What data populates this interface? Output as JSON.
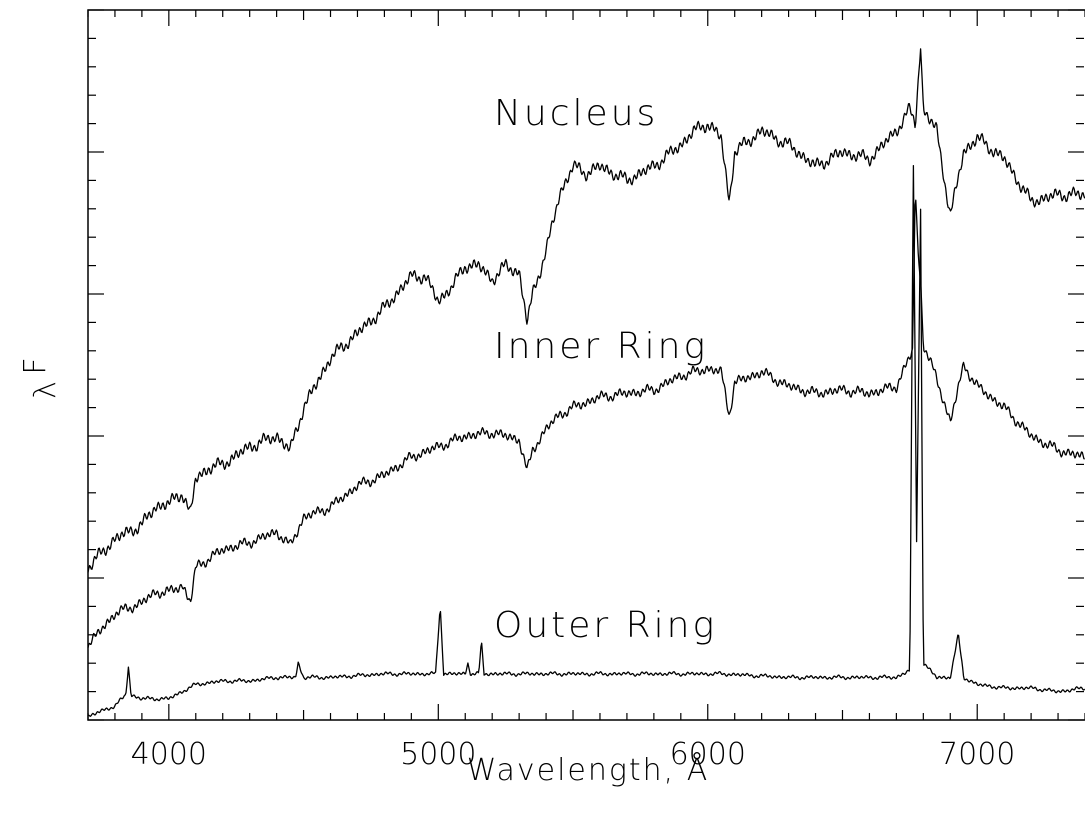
{
  "chart_data": {
    "type": "line",
    "title": "",
    "xlabel": "Wavelength, Å",
    "ylabel": "F",
    "ylabel_subscript": "λ",
    "xlim": [
      3700,
      7400
    ],
    "ylim": [
      0,
      1
    ],
    "xticks": [
      4000,
      5000,
      6000,
      7000
    ],
    "xtick_labels": [
      "4000",
      "5000",
      "6000",
      "7000"
    ],
    "grid": false,
    "legend": "none",
    "series": [
      {
        "name": "Nucleus",
        "points": [
          [
            3700,
            0.215
          ],
          [
            3800,
            0.255
          ],
          [
            3900,
            0.275
          ],
          [
            3950,
            0.3
          ],
          [
            4000,
            0.305
          ],
          [
            4050,
            0.32
          ],
          [
            4080,
            0.29
          ],
          [
            4100,
            0.34
          ],
          [
            4150,
            0.355
          ],
          [
            4200,
            0.36
          ],
          [
            4300,
            0.385
          ],
          [
            4400,
            0.4
          ],
          [
            4450,
            0.38
          ],
          [
            4500,
            0.44
          ],
          [
            4600,
            0.51
          ],
          [
            4700,
            0.545
          ],
          [
            4800,
            0.58
          ],
          [
            4900,
            0.625
          ],
          [
            4950,
            0.625
          ],
          [
            5000,
            0.59
          ],
          [
            5050,
            0.61
          ],
          [
            5100,
            0.64
          ],
          [
            5150,
            0.64
          ],
          [
            5200,
            0.62
          ],
          [
            5250,
            0.64
          ],
          [
            5300,
            0.63
          ],
          [
            5330,
            0.56
          ],
          [
            5350,
            0.6
          ],
          [
            5400,
            0.66
          ],
          [
            5450,
            0.74
          ],
          [
            5500,
            0.78
          ],
          [
            5550,
            0.77
          ],
          [
            5600,
            0.78
          ],
          [
            5700,
            0.76
          ],
          [
            5800,
            0.78
          ],
          [
            5900,
            0.81
          ],
          [
            5950,
            0.83
          ],
          [
            6000,
            0.84
          ],
          [
            6050,
            0.82
          ],
          [
            6080,
            0.73
          ],
          [
            6100,
            0.8
          ],
          [
            6200,
            0.83
          ],
          [
            6300,
            0.81
          ],
          [
            6400,
            0.78
          ],
          [
            6500,
            0.8
          ],
          [
            6600,
            0.79
          ],
          [
            6700,
            0.83
          ],
          [
            6750,
            0.86
          ],
          [
            6770,
            0.84
          ],
          [
            6790,
            0.95
          ],
          [
            6800,
            0.86
          ],
          [
            6850,
            0.83
          ],
          [
            6900,
            0.71
          ],
          [
            6950,
            0.8
          ],
          [
            7000,
            0.82
          ],
          [
            7100,
            0.79
          ],
          [
            7200,
            0.73
          ],
          [
            7300,
            0.74
          ],
          [
            7400,
            0.74
          ]
        ]
      },
      {
        "name": "Inner Ring",
        "points": [
          [
            3700,
            0.105
          ],
          [
            3800,
            0.15
          ],
          [
            3900,
            0.165
          ],
          [
            3950,
            0.18
          ],
          [
            4000,
            0.18
          ],
          [
            4050,
            0.19
          ],
          [
            4080,
            0.165
          ],
          [
            4100,
            0.215
          ],
          [
            4200,
            0.24
          ],
          [
            4300,
            0.25
          ],
          [
            4400,
            0.265
          ],
          [
            4450,
            0.245
          ],
          [
            4500,
            0.285
          ],
          [
            4600,
            0.3
          ],
          [
            4700,
            0.33
          ],
          [
            4800,
            0.345
          ],
          [
            4900,
            0.37
          ],
          [
            5000,
            0.385
          ],
          [
            5100,
            0.4
          ],
          [
            5200,
            0.405
          ],
          [
            5300,
            0.395
          ],
          [
            5330,
            0.35
          ],
          [
            5350,
            0.38
          ],
          [
            5400,
            0.41
          ],
          [
            5450,
            0.43
          ],
          [
            5500,
            0.44
          ],
          [
            5600,
            0.455
          ],
          [
            5700,
            0.46
          ],
          [
            5800,
            0.465
          ],
          [
            5900,
            0.485
          ],
          [
            6000,
            0.495
          ],
          [
            6050,
            0.49
          ],
          [
            6080,
            0.43
          ],
          [
            6100,
            0.475
          ],
          [
            6200,
            0.49
          ],
          [
            6300,
            0.47
          ],
          [
            6400,
            0.46
          ],
          [
            6500,
            0.465
          ],
          [
            6600,
            0.46
          ],
          [
            6700,
            0.47
          ],
          [
            6760,
            0.52
          ],
          [
            6770,
            0.75
          ],
          [
            6780,
            0.66
          ],
          [
            6790,
            0.62
          ],
          [
            6800,
            0.53
          ],
          [
            6850,
            0.48
          ],
          [
            6900,
            0.42
          ],
          [
            6950,
            0.5
          ],
          [
            7000,
            0.47
          ],
          [
            7100,
            0.44
          ],
          [
            7200,
            0.4
          ],
          [
            7300,
            0.38
          ],
          [
            7400,
            0.37
          ]
        ]
      },
      {
        "name": "Outer Ring",
        "points": [
          [
            3700,
            0.005
          ],
          [
            3800,
            0.02
          ],
          [
            3840,
            0.035
          ],
          [
            3850,
            0.075
          ],
          [
            3860,
            0.035
          ],
          [
            3900,
            0.03
          ],
          [
            4000,
            0.03
          ],
          [
            4100,
            0.05
          ],
          [
            4200,
            0.055
          ],
          [
            4300,
            0.055
          ],
          [
            4400,
            0.06
          ],
          [
            4470,
            0.06
          ],
          [
            4480,
            0.08
          ],
          [
            4500,
            0.06
          ],
          [
            4600,
            0.06
          ],
          [
            4800,
            0.065
          ],
          [
            4900,
            0.065
          ],
          [
            4990,
            0.065
          ],
          [
            5007,
            0.16
          ],
          [
            5020,
            0.065
          ],
          [
            5100,
            0.065
          ],
          [
            5110,
            0.08
          ],
          [
            5120,
            0.065
          ],
          [
            5150,
            0.065
          ],
          [
            5160,
            0.11
          ],
          [
            5170,
            0.065
          ],
          [
            5300,
            0.065
          ],
          [
            5500,
            0.065
          ],
          [
            5700,
            0.065
          ],
          [
            5900,
            0.065
          ],
          [
            6050,
            0.065
          ],
          [
            6300,
            0.06
          ],
          [
            6500,
            0.06
          ],
          [
            6700,
            0.06
          ],
          [
            6750,
            0.07
          ],
          [
            6763,
            0.78
          ],
          [
            6775,
            0.25
          ],
          [
            6790,
            0.72
          ],
          [
            6800,
            0.08
          ],
          [
            6850,
            0.06
          ],
          [
            6900,
            0.06
          ],
          [
            6930,
            0.12
          ],
          [
            6950,
            0.06
          ],
          [
            7000,
            0.05
          ],
          [
            7100,
            0.045
          ],
          [
            7200,
            0.045
          ],
          [
            7300,
            0.04
          ],
          [
            7400,
            0.045
          ]
        ]
      }
    ],
    "annotations": [
      "Nucleus",
      "Inner Ring",
      "Outer Ring"
    ]
  }
}
